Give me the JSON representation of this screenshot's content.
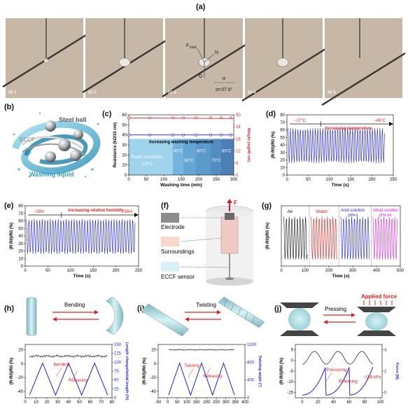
{
  "panel_a": {
    "label": "(a)",
    "frames": [
      "M-1",
      "M-2",
      "M-3",
      "M-4",
      "M-5"
    ],
    "annotations": {
      "f_total": "F",
      "f_total_sub": "total",
      "n": "N",
      "g": "G",
      "alpha_symbol": "α",
      "alpha_value": "α=37.8°"
    },
    "colors": {
      "background": "#c7b7a7",
      "wire": "#3a3432"
    }
  },
  "panel_b": {
    "label": "(b)",
    "steel_ball": "Steel ball",
    "eccf": "ECCF",
    "washing_liquid": "Washing liquid"
  },
  "panel_c": {
    "label": "(c)",
    "ylabel_left": "Resistance (kΩ/10 cm)",
    "ylabel_right": "Weight (mg/45 cm)",
    "xlabel": "Washing time (min)",
    "annotation": "Increasing washing temperature",
    "room": "Room condition",
    "room_temp": "~23°C",
    "zones": [
      "40°C",
      "50°C",
      "60°C",
      "70°C",
      "80°C"
    ],
    "x_ticks": [
      "0",
      "50",
      "100",
      "150",
      "200",
      "250",
      "300"
    ],
    "yl_ticks": [
      "0",
      "10",
      "20",
      "30",
      "40",
      "50",
      "60"
    ],
    "yr_ticks": [
      "0",
      "6",
      "12",
      "18",
      "24",
      "30"
    ]
  },
  "panel_d": {
    "label": "(d)",
    "ylabel": "(R-R0)/R0 (%)",
    "xlabel": "Time (s)",
    "annot_left": "~27°C",
    "annot_right": "~45°C",
    "annotation": "Increasing temperature",
    "x_ticks": [
      "0",
      "50",
      "100",
      "150",
      "200",
      "250"
    ],
    "y_ticks": [
      "0",
      "10",
      "20",
      "30",
      "40",
      "50",
      "60",
      "70",
      "80"
    ]
  },
  "panel_e": {
    "label": "(e)",
    "ylabel": "(R-R0)/R0 (%)",
    "xlabel": "Time (s)",
    "annot_left": "~28%",
    "annot_right": "~95%",
    "annotation": "Increasing relative humidity",
    "x_ticks": [
      "0",
      "50",
      "100",
      "150",
      "200",
      "250"
    ],
    "y_ticks": [
      "0",
      "10",
      "20",
      "30",
      "40",
      "50",
      "60",
      "70",
      "80"
    ]
  },
  "panel_f": {
    "label": "(f)",
    "electrode": "Electrode",
    "surroundings": "Surroundings",
    "sensor": "ECCF sensor",
    "force": "F"
  },
  "panel_g": {
    "label": "(g)",
    "ylabel": "(R-R0)/R0 (%)",
    "xlabel": "Time (s)",
    "air": "Air",
    "water": "Water",
    "acid": "Acid solution",
    "acid_ph": "pH=1",
    "alkali": "Alkali solution",
    "alkali_ph": "pH=14",
    "x_ticks": [
      "0",
      "100",
      "200",
      "300",
      "400",
      "500"
    ]
  },
  "panel_h": {
    "label": "(h)",
    "action": "Bending",
    "ylabel": "(R-R0)/R0 (%)",
    "ylabel_right": "Length change/initial length (%)",
    "xlabel": "",
    "a1": "Bending",
    "a2": "Releasing",
    "x_ticks": [
      "0",
      "10",
      "20",
      "30",
      "40",
      "50",
      "60",
      "70",
      "80"
    ],
    "y_ticks": [
      "-40",
      "-20",
      "0",
      "20"
    ],
    "yr_ticks": [
      "0",
      "25",
      "50",
      "75",
      "100",
      "125",
      "150"
    ]
  },
  "panel_i": {
    "label": "(i)",
    "action": "Twisting",
    "ylabel": "(R-R0)/R0 (%)",
    "ylabel_right": "Twisting angle (°)",
    "xlabel": "",
    "a1": "Twisting",
    "a2": "Releasing",
    "x_ticks": [
      "0",
      "50",
      "100",
      "150",
      "200",
      "250",
      "300",
      "350",
      "400"
    ],
    "x_tick_neg": "-50",
    "y_ticks": [
      "-40",
      "-20",
      "0",
      "20"
    ],
    "yr_ticks": [
      "0",
      "400",
      "800",
      "1200"
    ]
  },
  "panel_j": {
    "label": "(j)",
    "action": "Pressing",
    "applied": "Applied force",
    "ylabel": "(R-R0)/R0 (%)",
    "ylabel_right": "Force (N)",
    "xlabel": "",
    "a1": "Pressuring",
    "a2": "Releasing",
    "kpa": "~159 kPa",
    "x_ticks": [
      "0",
      "20",
      "40",
      "60",
      "80",
      "100"
    ],
    "y_ticks": [
      "-15",
      "-10",
      "-5",
      "0",
      "5"
    ],
    "yr_ticks": [
      "0",
      "2",
      "4"
    ]
  },
  "colors": {
    "blue": "#1f1fe0",
    "red": "#e02020",
    "black": "#111111",
    "magenta": "#e020e0",
    "annot_red": "#e02020"
  }
}
